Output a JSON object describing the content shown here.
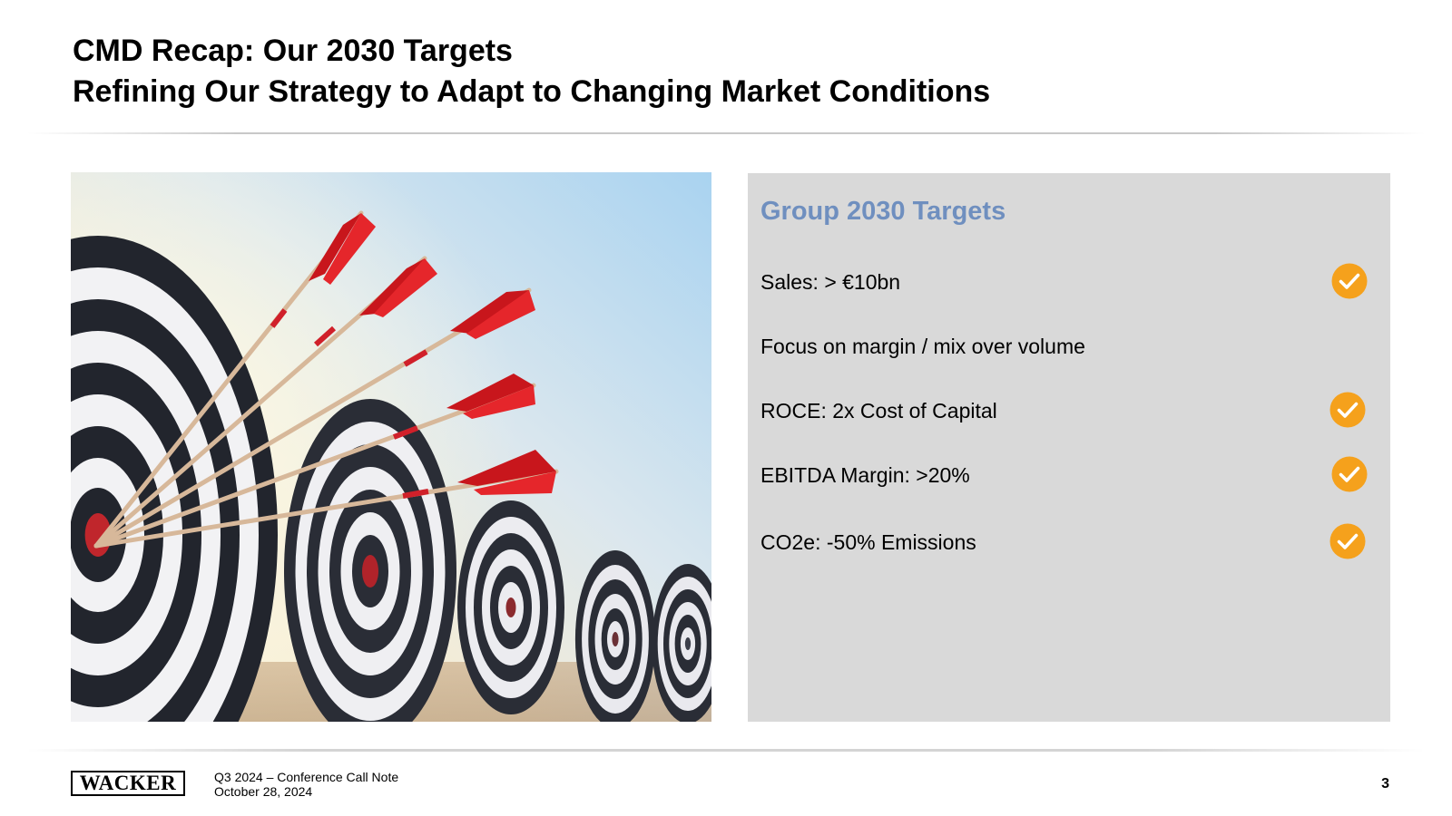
{
  "slide": {
    "title_line1": "CMD Recap: Our 2030 Targets",
    "title_line2": "Refining Our Strategy to Adapt to Changing Market Conditions",
    "page_number": "3"
  },
  "image": {
    "icon": "arrows-in-bullseye-targets-photo"
  },
  "panel": {
    "title": "Group 2030 Targets",
    "targets": [
      {
        "label": "Sales: > €10bn",
        "checked": true
      },
      {
        "label": "Focus on margin / mix over volume",
        "checked": false
      },
      {
        "label": "ROCE: 2x Cost of Capital",
        "checked": true
      },
      {
        "label": "EBITDA Margin: >20%",
        "checked": true
      },
      {
        "label": "CO2e: -50% Emissions",
        "checked": true
      }
    ],
    "check_color": "#f5a11c",
    "background_color": "#d9d9d9",
    "title_color": "#6f8fbf"
  },
  "footer": {
    "logo": "WACKER",
    "line1": "Q3 2024 – Conference Call Note",
    "line2": "October 28, 2024"
  }
}
